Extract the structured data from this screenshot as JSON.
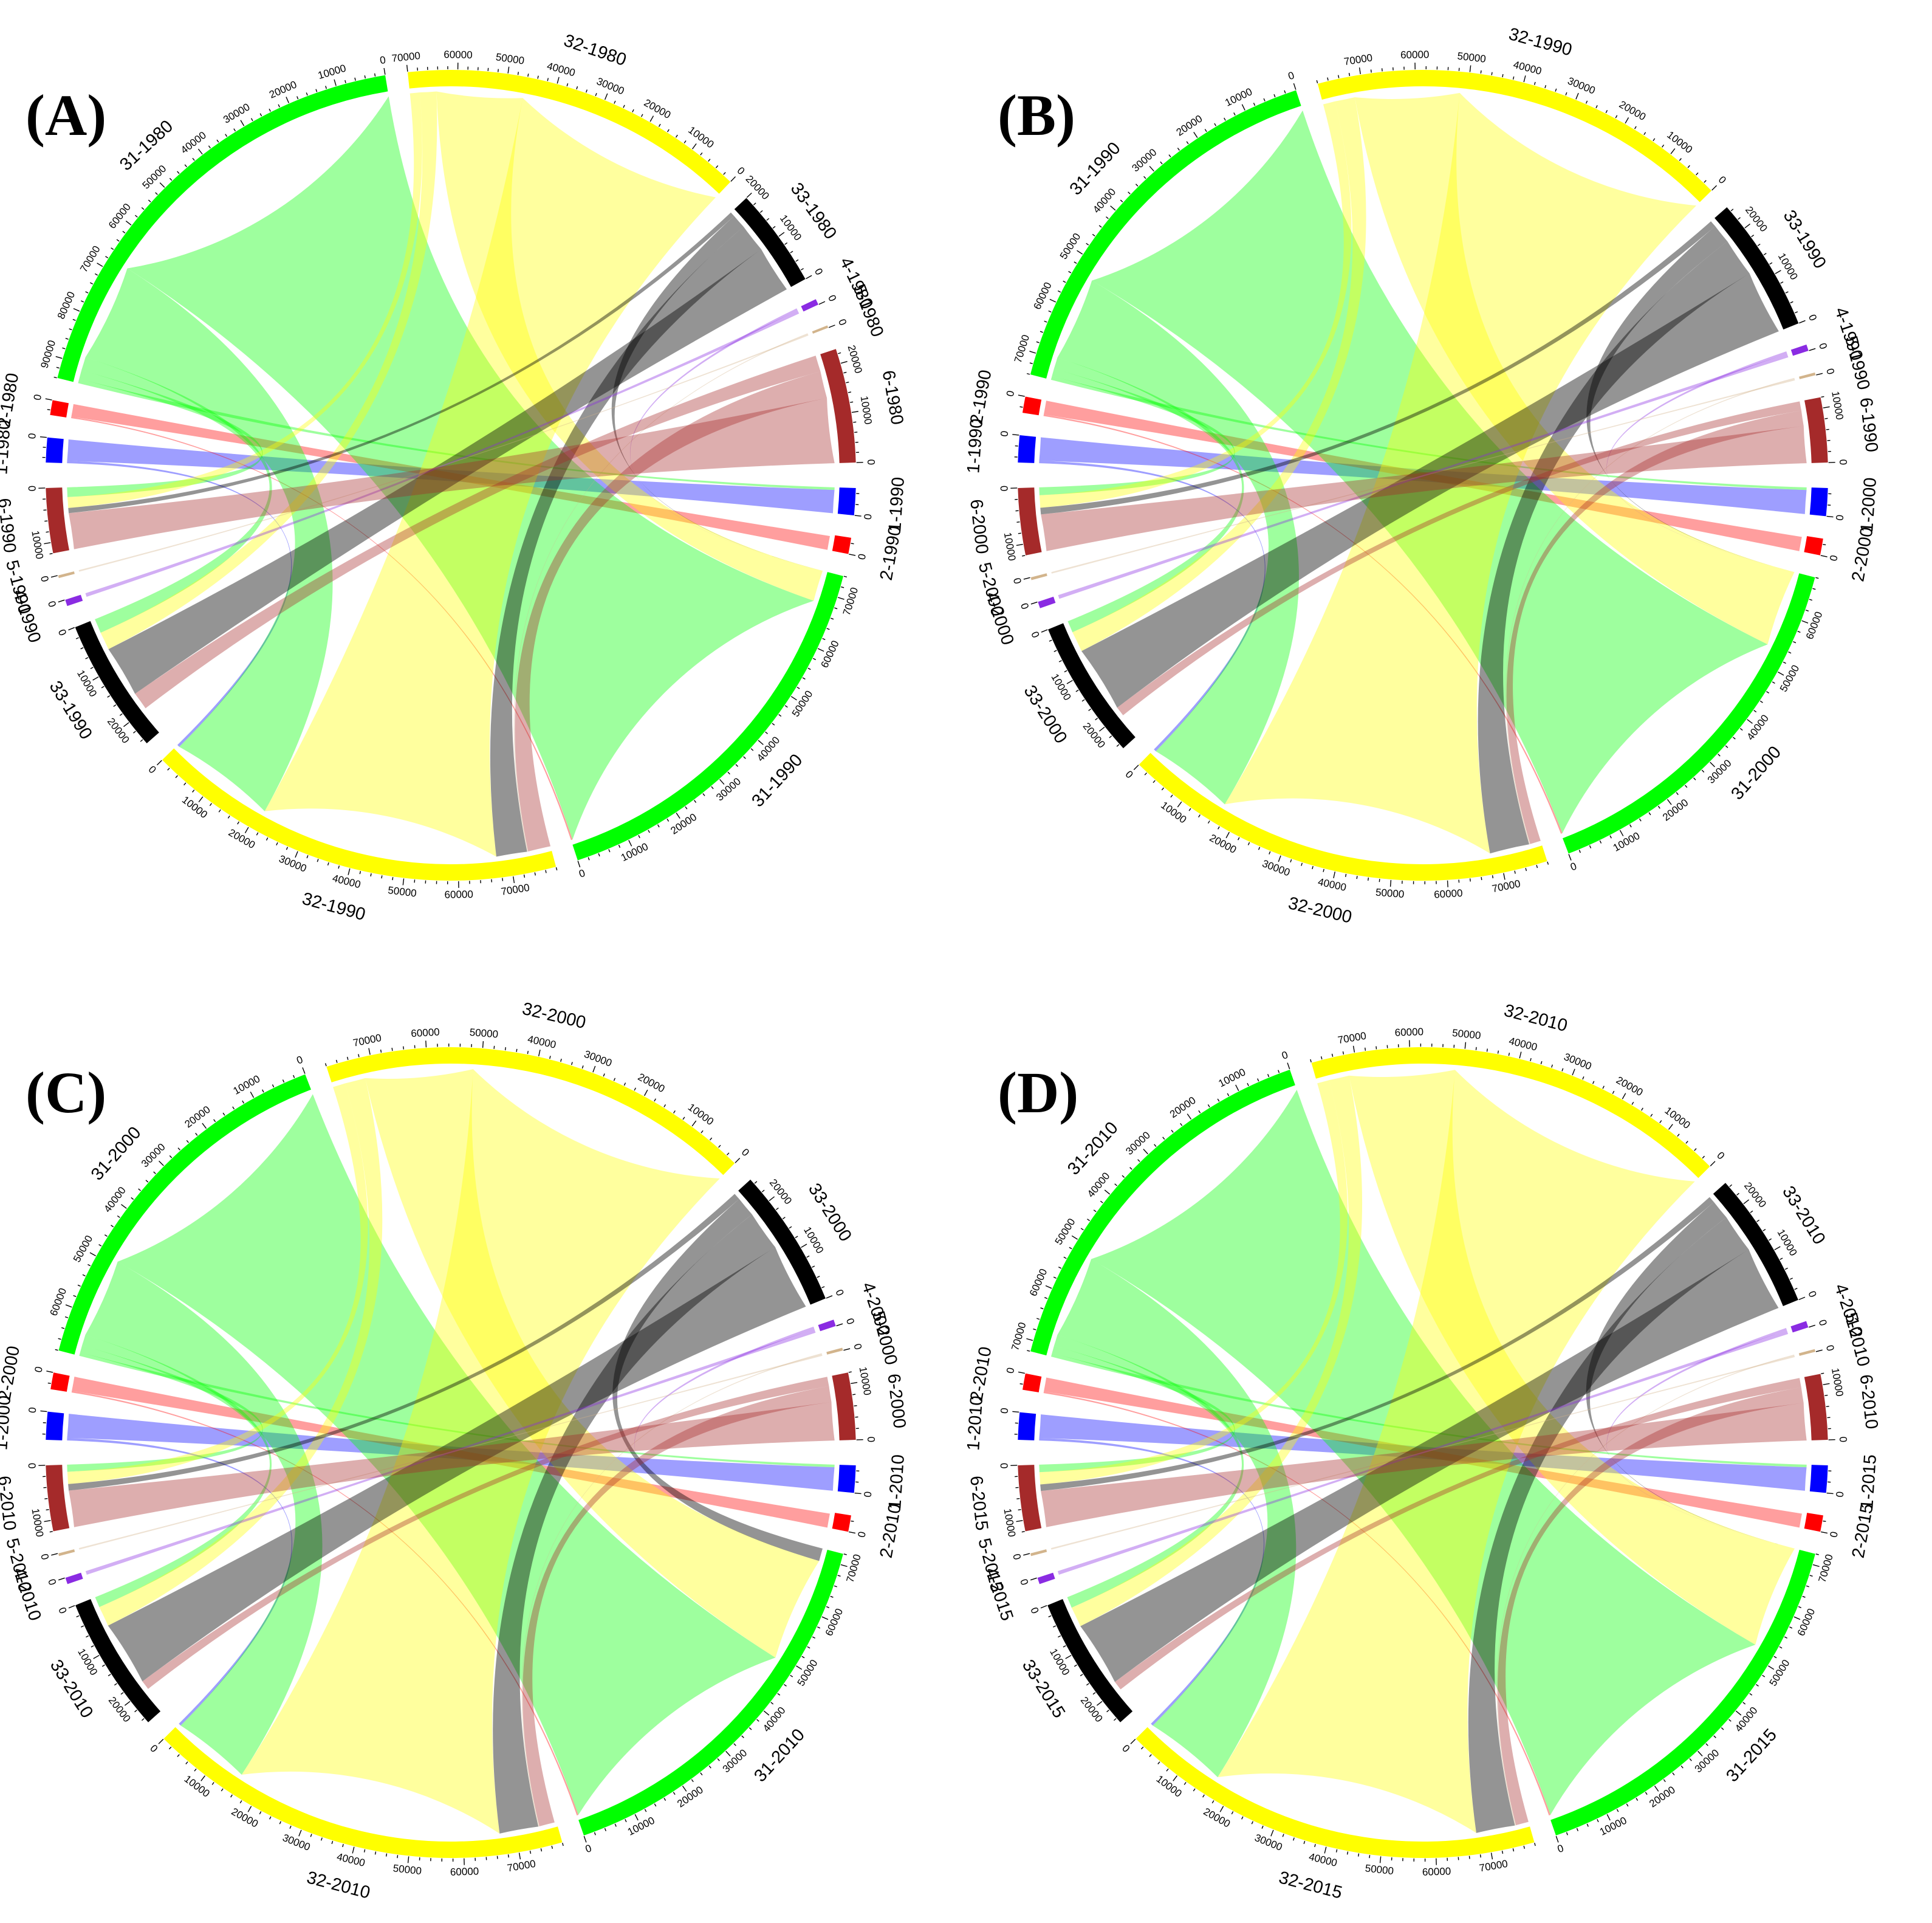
{
  "colors": {
    "1": "#0000FF",
    "2": "#FF0000",
    "31": "#00FF00",
    "32": "#FFFF00",
    "33": "#000000",
    "4": "#8A2BE2",
    "5": "#D2B48C",
    "6": "#A52A2A"
  },
  "panels": [
    {
      "label": "(A)",
      "from_year": "1980",
      "to_year": "1990",
      "sectors_from": [
        {
          "name": "31-1980",
          "code": "31",
          "total": 94000
        },
        {
          "name": "32-1980",
          "code": "32",
          "total": 70000
        },
        {
          "name": "33-1980",
          "code": "33",
          "total": 20000
        },
        {
          "name": "4-1980",
          "code": "4",
          "total": 1200
        },
        {
          "name": "5-1980",
          "code": "5",
          "total": 500
        },
        {
          "name": "6-1980",
          "code": "6",
          "total": 23000
        },
        {
          "name": "2-1980",
          "code": "2",
          "total": 3000
        },
        {
          "name": "1-1980",
          "code": "1",
          "total": 5000
        }
      ],
      "sectors_to": [
        {
          "name": "1-1990",
          "code": "1",
          "total": 5000
        },
        {
          "name": "2-1990",
          "code": "2",
          "total": 3000
        },
        {
          "name": "31-1990",
          "code": "31",
          "total": 74000
        },
        {
          "name": "32-1990",
          "code": "32",
          "total": 78000
        },
        {
          "name": "33-1990",
          "code": "33",
          "total": 25000
        },
        {
          "name": "4-1990",
          "code": "4",
          "total": 1200
        },
        {
          "name": "5-1990",
          "code": "5",
          "total": 500
        },
        {
          "name": "6-1990",
          "code": "6",
          "total": 12000
        }
      ]
    },
    {
      "label": "(B)",
      "from_year": "1990",
      "to_year": "2000",
      "sectors_from": [
        {
          "name": "31-1990",
          "code": "31",
          "total": 74000
        },
        {
          "name": "32-1990",
          "code": "32",
          "total": 78000
        },
        {
          "name": "33-1990",
          "code": "33",
          "total": 25000
        },
        {
          "name": "4-1990",
          "code": "4",
          "total": 1200
        },
        {
          "name": "5-1990",
          "code": "5",
          "total": 500
        },
        {
          "name": "6-1990",
          "code": "6",
          "total": 12000
        },
        {
          "name": "2-1990",
          "code": "2",
          "total": 3000
        },
        {
          "name": "1-1990",
          "code": "1",
          "total": 5000
        }
      ],
      "sectors_to": [
        {
          "name": "1-2000",
          "code": "1",
          "total": 5000
        },
        {
          "name": "2-2000",
          "code": "2",
          "total": 3000
        },
        {
          "name": "31-2000",
          "code": "31",
          "total": 68000
        },
        {
          "name": "32-2000",
          "code": "32",
          "total": 78000
        },
        {
          "name": "33-2000",
          "code": "33",
          "total": 25000
        },
        {
          "name": "4-2000",
          "code": "4",
          "total": 1200
        },
        {
          "name": "5-2000",
          "code": "5",
          "total": 500
        },
        {
          "name": "6-2000",
          "code": "6",
          "total": 12000
        }
      ]
    },
    {
      "label": "(C)",
      "from_year": "2000",
      "to_year": "2010",
      "sectors_from": [
        {
          "name": "31-2000",
          "code": "31",
          "total": 68000
        },
        {
          "name": "32-2000",
          "code": "32",
          "total": 78000
        },
        {
          "name": "33-2000",
          "code": "33",
          "total": 25000
        },
        {
          "name": "4-2000",
          "code": "4",
          "total": 1200
        },
        {
          "name": "5-2000",
          "code": "5",
          "total": 500
        },
        {
          "name": "6-2000",
          "code": "6",
          "total": 12000
        },
        {
          "name": "2-2000",
          "code": "2",
          "total": 3000
        },
        {
          "name": "1-2000",
          "code": "1",
          "total": 5000
        }
      ],
      "sectors_to": [
        {
          "name": "1-2010",
          "code": "1",
          "total": 5000
        },
        {
          "name": "2-2010",
          "code": "2",
          "total": 3000
        },
        {
          "name": "31-2010",
          "code": "31",
          "total": 72000
        },
        {
          "name": "32-2010",
          "code": "32",
          "total": 78000
        },
        {
          "name": "33-2010",
          "code": "33",
          "total": 25000
        },
        {
          "name": "4-2010",
          "code": "4",
          "total": 1200
        },
        {
          "name": "5-2010",
          "code": "5",
          "total": 500
        },
        {
          "name": "6-2010",
          "code": "6",
          "total": 12000
        }
      ]
    },
    {
      "label": "(D)",
      "from_year": "2010",
      "to_year": "2015",
      "sectors_from": [
        {
          "name": "31-2010",
          "code": "31",
          "total": 72000
        },
        {
          "name": "32-2010",
          "code": "32",
          "total": 78000
        },
        {
          "name": "33-2010",
          "code": "33",
          "total": 25000
        },
        {
          "name": "4-2010",
          "code": "4",
          "total": 1200
        },
        {
          "name": "5-2010",
          "code": "5",
          "total": 500
        },
        {
          "name": "6-2010",
          "code": "6",
          "total": 12000
        },
        {
          "name": "2-2010",
          "code": "2",
          "total": 3000
        },
        {
          "name": "1-2010",
          "code": "1",
          "total": 5000
        }
      ],
      "sectors_to": [
        {
          "name": "1-2015",
          "code": "1",
          "total": 5000
        },
        {
          "name": "2-2015",
          "code": "2",
          "total": 3000
        },
        {
          "name": "31-2015",
          "code": "31",
          "total": 72000
        },
        {
          "name": "32-2015",
          "code": "32",
          "total": 78000
        },
        {
          "name": "33-2015",
          "code": "33",
          "total": 25000
        },
        {
          "name": "4-2015",
          "code": "4",
          "total": 1200
        },
        {
          "name": "5-2015",
          "code": "5",
          "total": 500
        },
        {
          "name": "6-2015",
          "code": "6",
          "total": 12000
        }
      ]
    }
  ]
}
